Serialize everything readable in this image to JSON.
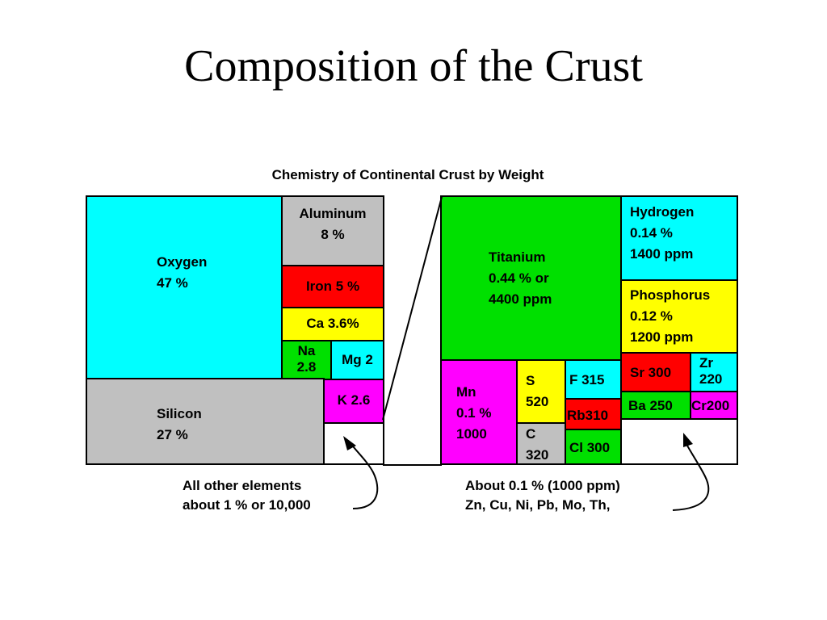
{
  "slide_title": "Composition of the Crust",
  "chart_title": "Chemistry of Continental Crust by Weight",
  "colors": {
    "cyan": "#00ffff",
    "gray": "#c0c0c0",
    "red": "#ff0000",
    "yellow": "#ffff00",
    "green": "#00e000",
    "magenta": "#ff00ff",
    "white": "#ffffff"
  },
  "left": {
    "oxygen": {
      "name": "Oxygen",
      "value": "47 %"
    },
    "aluminum": {
      "name": "Aluminum",
      "value": "8 %"
    },
    "iron": "Iron 5 %",
    "ca": "Ca 3.6%",
    "na": {
      "name": "Na",
      "value": "2.8"
    },
    "mg": "Mg 2",
    "silicon": {
      "name": "Silicon",
      "value": "27 %"
    },
    "k": "K 2.6"
  },
  "right": {
    "titanium": {
      "line1": "Titanium",
      "line2": "0.44 % or",
      "line3": "4400 ppm"
    },
    "hydrogen": {
      "line1": "Hydrogen",
      "line2": "0.14 %",
      "line3": "1400 ppm"
    },
    "phosphorus": {
      "line1": "Phosphorus",
      "line2": "0.12 %",
      "line3": "1200 ppm"
    },
    "mn": {
      "line1": "Mn",
      "line2": "0.1 %",
      "line3": "1000"
    },
    "s": {
      "name": "S",
      "value": "520"
    },
    "c": {
      "name": "C",
      "value": "320"
    },
    "f": "F 315",
    "rb": "Rb310",
    "cl": "Cl 300",
    "sr": "Sr 300",
    "zr": {
      "name": "Zr",
      "value": "220"
    },
    "ba": "Ba 250",
    "cr": "Cr200"
  },
  "notes": {
    "left_line1": "All other elements",
    "left_line2": "about 1 % or 10,000",
    "right_line1": "About 0.1 % (1000 ppm)",
    "right_line2": "Zn, Cu, Ni, Pb, Mo, Th,"
  }
}
